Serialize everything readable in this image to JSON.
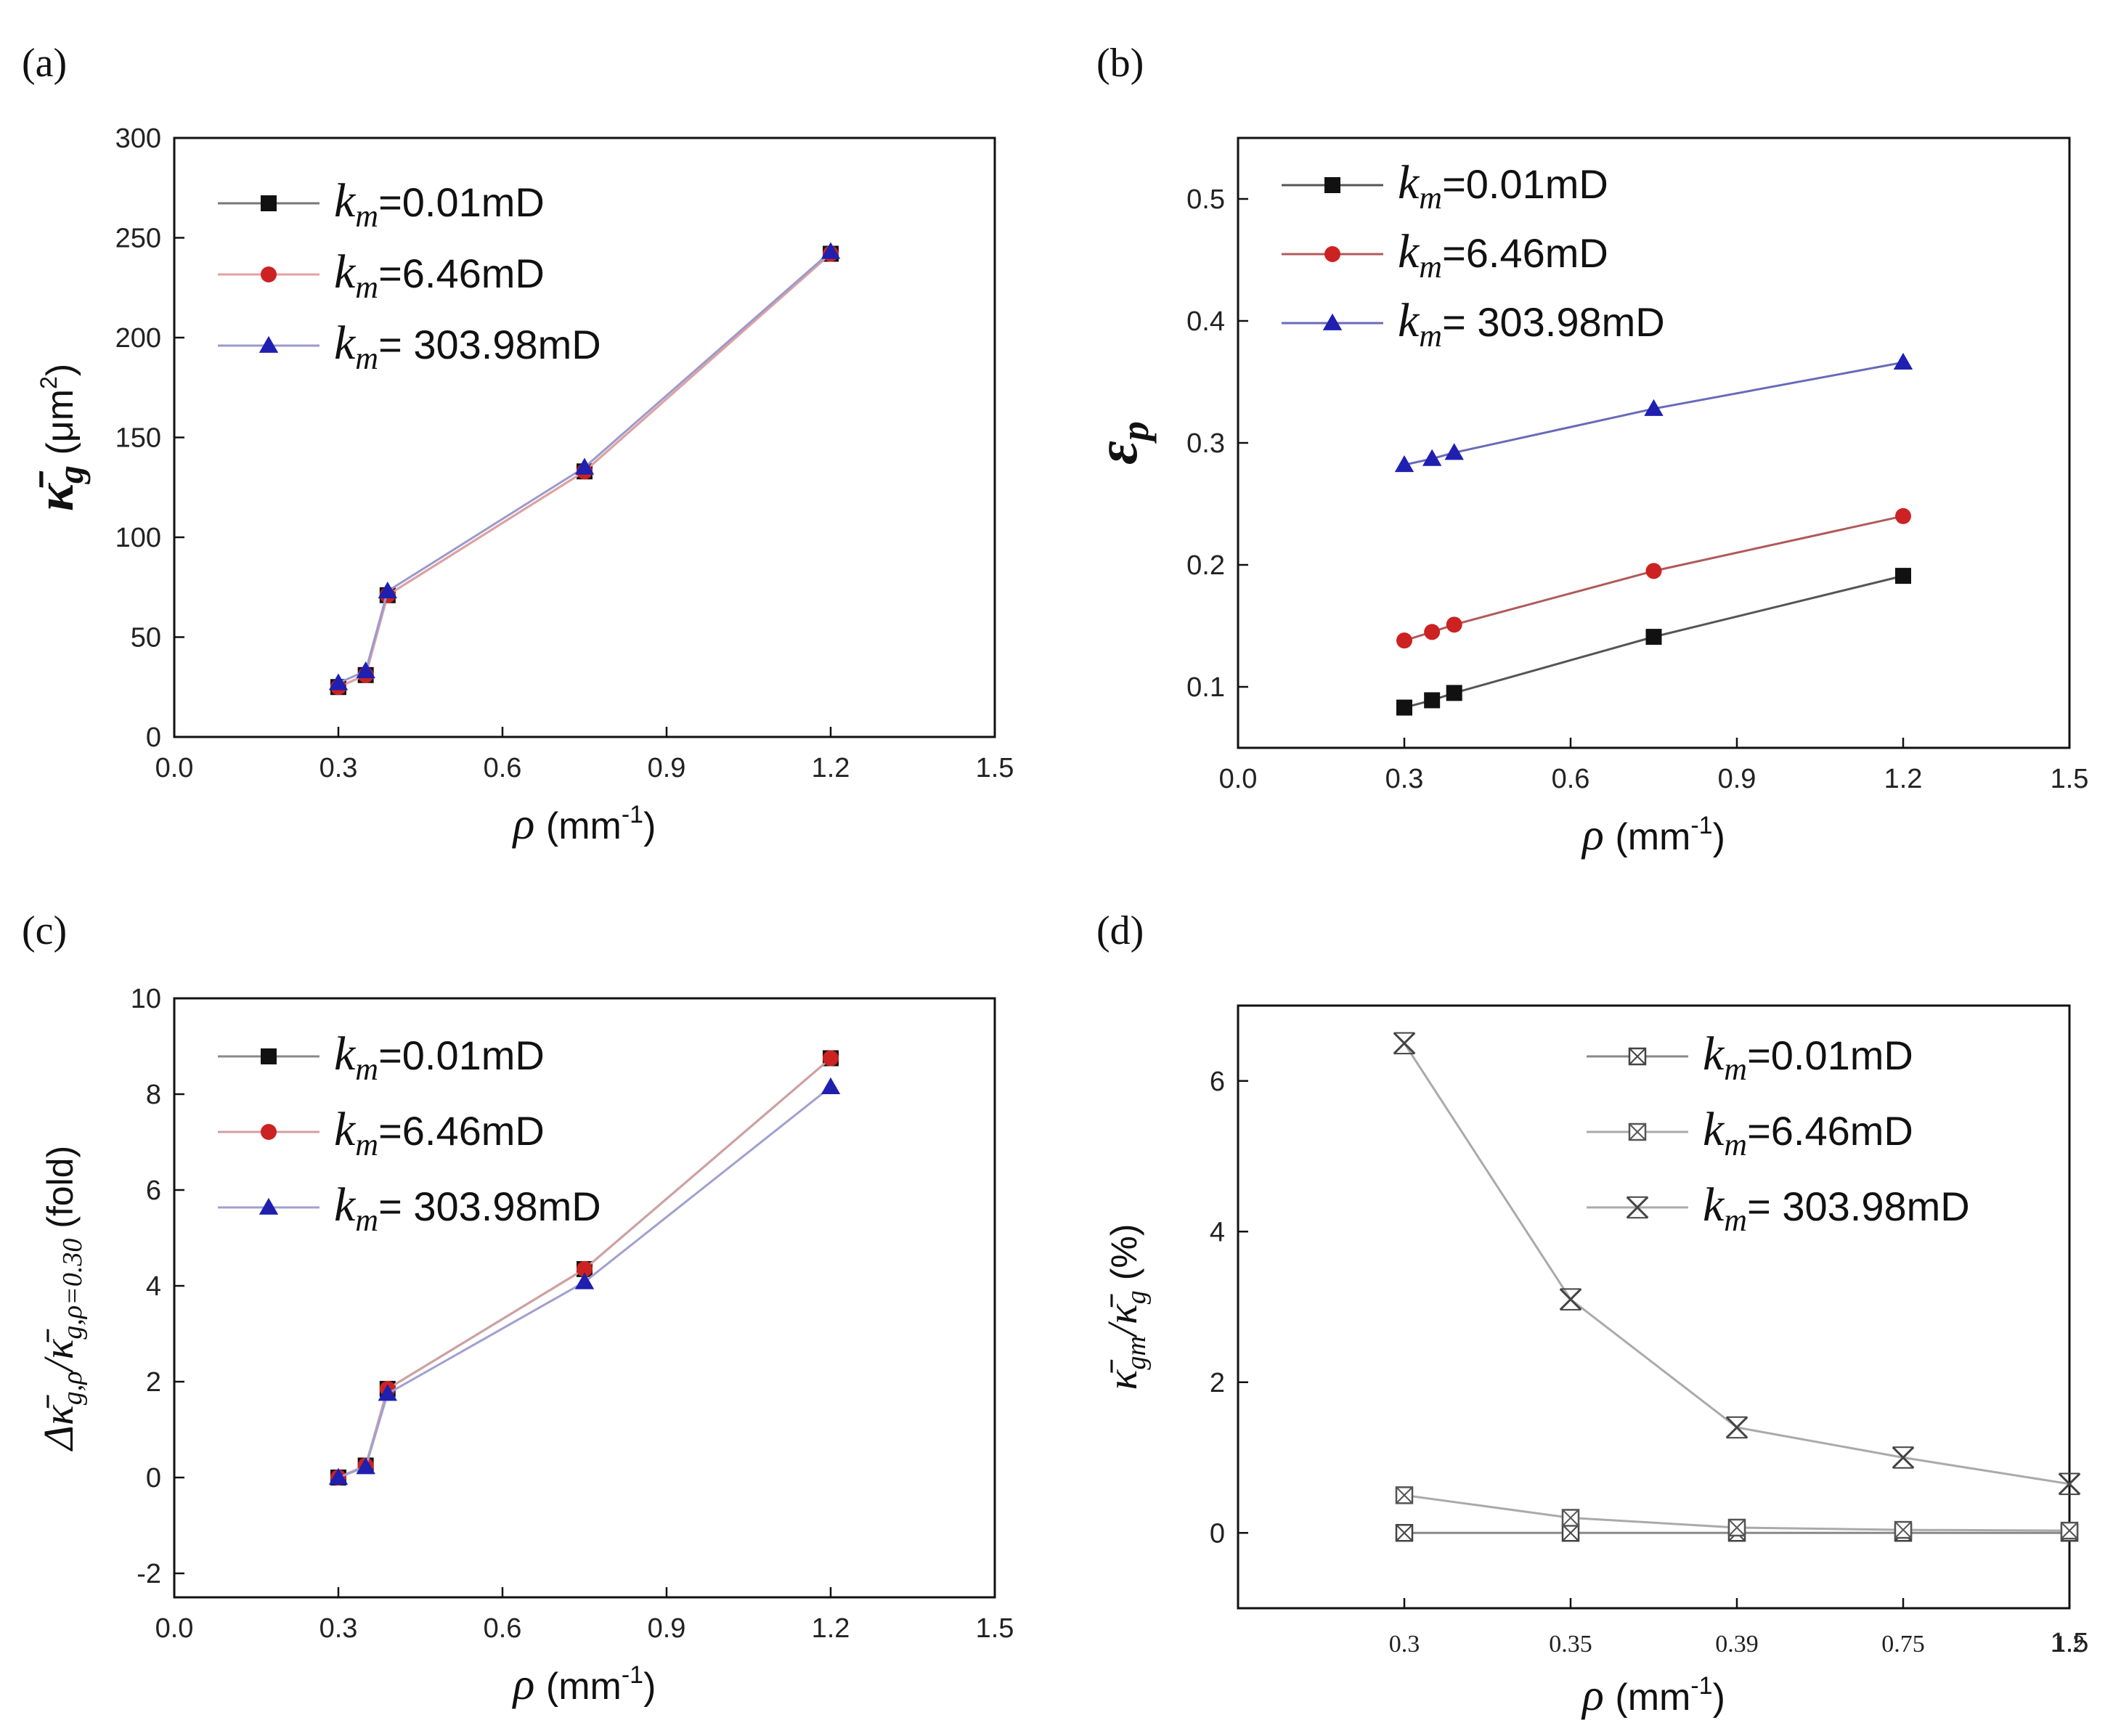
{
  "chart_data": [
    {
      "panel": "(a)",
      "type": "line",
      "x": [
        0.3,
        0.35,
        0.39,
        0.75,
        1.2
      ],
      "xlim": [
        0.0,
        1.5
      ],
      "ylim": [
        0,
        300
      ],
      "xticks": [
        "0.0",
        "0.3",
        "0.6",
        "0.9",
        "1.2",
        "1.5"
      ],
      "yticks": [
        "0",
        "50",
        "100",
        "150",
        "200",
        "250",
        "300"
      ],
      "xlabel": {
        "symbol": "ρ",
        "unit": "(mm",
        "sup": "-1",
        "close": ")"
      },
      "ylabel": {
        "symbol": "κ̄",
        "sub": "g",
        "unit": "(μm",
        "sup": "2",
        "close": ")"
      },
      "legend_position": "top-left",
      "series": [
        {
          "name": "k_m=0.01mD",
          "label_sym": "k",
          "label_sub": "m",
          "label_rest": "=0.01mD",
          "values": [
            25,
            31,
            71,
            133,
            242
          ],
          "color": "#111111",
          "line": "#777777",
          "marker": "square"
        },
        {
          "name": "k_m=6.46mD",
          "label_sym": "k",
          "label_sub": "m",
          "label_rest": "=6.46mD",
          "values": [
            25,
            31,
            71,
            133,
            242
          ],
          "color": "#cc2222",
          "line": "#e2a0a0",
          "marker": "circle"
        },
        {
          "name": "k_m= 303.98mD",
          "label_sym": "k",
          "label_sub": "m",
          "label_rest": "= 303.98mD",
          "values": [
            27,
            33,
            73,
            135,
            243
          ],
          "color": "#1f1fb0",
          "line": "#9a9acc",
          "marker": "triangle"
        }
      ]
    },
    {
      "panel": "(b)",
      "type": "line",
      "x": [
        0.3,
        0.35,
        0.39,
        0.75,
        1.2
      ],
      "xlim": [
        0.0,
        1.5
      ],
      "ylim": [
        0.05,
        0.55
      ],
      "xticks": [
        "0.0",
        "0.3",
        "0.6",
        "0.9",
        "1.2",
        "1.5"
      ],
      "yticks": [
        "0.1",
        "0.2",
        "0.3",
        "0.4",
        "0.5"
      ],
      "xlabel": {
        "symbol": "ρ",
        "unit": "(mm",
        "sup": "-1",
        "close": ")"
      },
      "ylabel": {
        "symbol": "ε",
        "sub": "p"
      },
      "legend_position": "top-left",
      "series": [
        {
          "name": "k_m=0.01mD",
          "label_sym": "k",
          "label_sub": "m",
          "label_rest": "=0.01mD",
          "values": [
            0.083,
            0.089,
            0.095,
            0.141,
            0.191
          ],
          "color": "#111111",
          "line": "#555555",
          "marker": "square"
        },
        {
          "name": "k_m=6.46mD",
          "label_sym": "k",
          "label_sub": "m",
          "label_rest": "=6.46mD",
          "values": [
            0.138,
            0.145,
            0.151,
            0.195,
            0.24
          ],
          "color": "#cc2222",
          "line": "#b05a5a",
          "marker": "circle"
        },
        {
          "name": "k_m= 303.98mD",
          "label_sym": "k",
          "label_sub": "m",
          "label_rest": "= 303.98mD",
          "values": [
            0.282,
            0.287,
            0.292,
            0.328,
            0.366
          ],
          "color": "#1f1fb0",
          "line": "#6a6ab8",
          "marker": "triangle"
        }
      ]
    },
    {
      "panel": "(c)",
      "type": "line",
      "x": [
        0.3,
        0.35,
        0.39,
        0.75,
        1.2
      ],
      "xlim": [
        0.0,
        1.5
      ],
      "ylim": [
        -2.5,
        10
      ],
      "xticks": [
        "0.0",
        "0.3",
        "0.6",
        "0.9",
        "1.2",
        "1.5"
      ],
      "yticks": [
        "-2",
        "0",
        "2",
        "4",
        "6",
        "8",
        "10"
      ],
      "xlabel": {
        "symbol": "ρ",
        "unit": "(mm",
        "sup": "-1",
        "close": ")"
      },
      "ylabel": {
        "text": "Δκ̄",
        "sub1": "g,ρ",
        "mid": "/κ̄",
        "sub2": "g,ρ=0.30",
        "rest": " (fold)"
      },
      "legend_position": "top-left",
      "series": [
        {
          "name": "k_m=0.01mD",
          "label_sym": "k",
          "label_sub": "m",
          "label_rest": "=0.01mD",
          "values": [
            0.0,
            0.25,
            1.85,
            4.35,
            8.75
          ],
          "color": "#111111",
          "line": "#888888",
          "marker": "square"
        },
        {
          "name": "k_m=6.46mD",
          "label_sym": "k",
          "label_sub": "m",
          "label_rest": "=6.46mD",
          "values": [
            0.0,
            0.25,
            1.85,
            4.35,
            8.75
          ],
          "color": "#cc2222",
          "line": "#d0a0a0",
          "marker": "circle"
        },
        {
          "name": "k_m= 303.98mD",
          "label_sym": "k",
          "label_sub": "m",
          "label_rest": "= 303.98mD",
          "values": [
            0.0,
            0.22,
            1.75,
            4.08,
            8.15
          ],
          "color": "#1f1fb0",
          "line": "#a0a0d0",
          "marker": "triangle"
        }
      ]
    },
    {
      "panel": "(d)",
      "type": "line",
      "x": [
        0.3,
        0.35,
        0.39,
        0.75,
        1.2
      ],
      "x_category_positions": [
        0.3,
        0.6,
        0.9,
        1.2,
        1.5
      ],
      "xlim": [
        0.0,
        1.5
      ],
      "ylim": [
        -1,
        7
      ],
      "xticks": [
        "0.3",
        "0.35",
        "0.39",
        "0.75",
        "1.2"
      ],
      "xtick_extra": "1.5",
      "yticks": [
        "0",
        "2",
        "4",
        "6"
      ],
      "xlabel": {
        "symbol": "ρ",
        "unit": "(mm",
        "sup": "-1",
        "close": ")"
      },
      "ylabel": {
        "text": "κ̄",
        "sub1": "gm",
        "mid": "/κ̄",
        "sub2": "g",
        "rest": "   (%)"
      },
      "legend_position": "top-right",
      "series": [
        {
          "name": "k_m=0.01mD",
          "label_sym": "k",
          "label_sub": "m",
          "label_rest": "=0.01mD",
          "values": [
            0.0,
            0.0,
            0.0,
            0.0,
            0.0
          ],
          "color": "#444444",
          "line": "#888888",
          "marker": "boxed-x"
        },
        {
          "name": "k_m=6.46mD",
          "label_sym": "k",
          "label_sub": "m",
          "label_rest": "=6.46mD",
          "values": [
            0.5,
            0.2,
            0.07,
            0.04,
            0.03
          ],
          "color": "#555555",
          "line": "#aaaaaa",
          "marker": "boxed-x"
        },
        {
          "name": "k_m= 303.98mD",
          "label_sym": "k",
          "label_sub": "m",
          "label_rest": "= 303.98mD",
          "values": [
            6.5,
            3.1,
            1.4,
            1.0,
            0.65
          ],
          "color": "#444444",
          "line": "#aaaaaa",
          "marker": "double-x"
        }
      ]
    }
  ]
}
